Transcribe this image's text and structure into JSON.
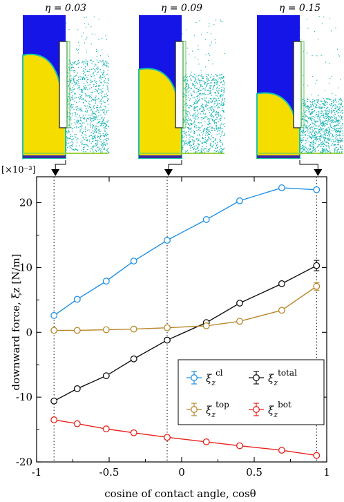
{
  "panels": [
    {
      "eta_label": "η = 0.03",
      "water_top_frac": 0.28,
      "water_cut_depth": 0.55
    },
    {
      "eta_label": "η = 0.09",
      "water_top_frac": 0.38,
      "water_cut_depth": 0.6
    },
    {
      "eta_label": "η = 0.15",
      "water_top_frac": 0.55,
      "water_cut_depth": 0.75
    }
  ],
  "colors": {
    "vapor_blue": "#1515e8",
    "liquid_yellow": "#f5dd00",
    "particles": "#19b3b3",
    "plate_outline": "#222222",
    "frame_green": "#55cc55"
  },
  "chart_data": {
    "type": "line",
    "scale_label": "[×10⁻³]",
    "xlabel": "cosine of contact angle, cosθ",
    "ylabel": "downward force, ξz [N/m]",
    "xlim": [
      -1,
      1
    ],
    "ylim": [
      -20,
      24
    ],
    "xticks": [
      -1,
      -0.5,
      0,
      0.5,
      1
    ],
    "xtick_labels": [
      "-1",
      "-0.5",
      "0",
      "0.5",
      "1"
    ],
    "yticks": [
      -20,
      -10,
      0,
      10,
      20
    ],
    "ytick_labels": [
      "-20",
      "-10",
      "0",
      "10",
      "20"
    ],
    "vlines": [
      -0.88,
      -0.1,
      0.93
    ],
    "x": [
      -0.88,
      -0.72,
      -0.52,
      -0.33,
      -0.1,
      0.17,
      0.4,
      0.69,
      0.93
    ],
    "series": [
      {
        "name": "ξz cl",
        "sym": "ξ",
        "sub": "z",
        "sup": "cl",
        "color": "#1e90e6",
        "values": [
          2.6,
          5.1,
          7.9,
          11.0,
          14.2,
          17.4,
          20.3,
          22.3,
          22.0
        ],
        "errors": [
          0.3,
          0.3,
          0.3,
          0.3,
          0.3,
          0.3,
          0.3,
          0.3,
          0.4
        ]
      },
      {
        "name": "ξz total",
        "sym": "ξ",
        "sub": "z",
        "sup": "total",
        "color": "#111111",
        "values": [
          -10.6,
          -8.7,
          -6.7,
          -4.1,
          -1.2,
          1.5,
          4.5,
          7.5,
          10.3
        ],
        "errors": [
          0.3,
          0.3,
          0.3,
          0.3,
          0.3,
          0.3,
          0.3,
          0.4,
          0.8
        ]
      },
      {
        "name": "ξz top",
        "sym": "ξ",
        "sub": "z",
        "sup": "top",
        "color": "#b8862b",
        "values": [
          0.3,
          0.3,
          0.4,
          0.5,
          0.7,
          1.0,
          1.7,
          3.4,
          7.1
        ],
        "errors": [
          0.2,
          0.2,
          0.2,
          0.2,
          0.2,
          0.2,
          0.2,
          0.3,
          0.6
        ]
      },
      {
        "name": "ξz bot",
        "sym": "ξ",
        "sub": "z",
        "sup": "bot",
        "color": "#e8201b",
        "values": [
          -13.5,
          -14.1,
          -14.9,
          -15.5,
          -16.2,
          -16.9,
          -17.5,
          -18.2,
          -19.0
        ],
        "errors": [
          0.2,
          0.2,
          0.2,
          0.2,
          0.2,
          0.2,
          0.2,
          0.2,
          0.3
        ]
      }
    ],
    "legend": {
      "placement": "lower-right",
      "order": [
        "ξz cl",
        "ξz total",
        "ξz top",
        "ξz bot"
      ]
    },
    "grid": false
  }
}
